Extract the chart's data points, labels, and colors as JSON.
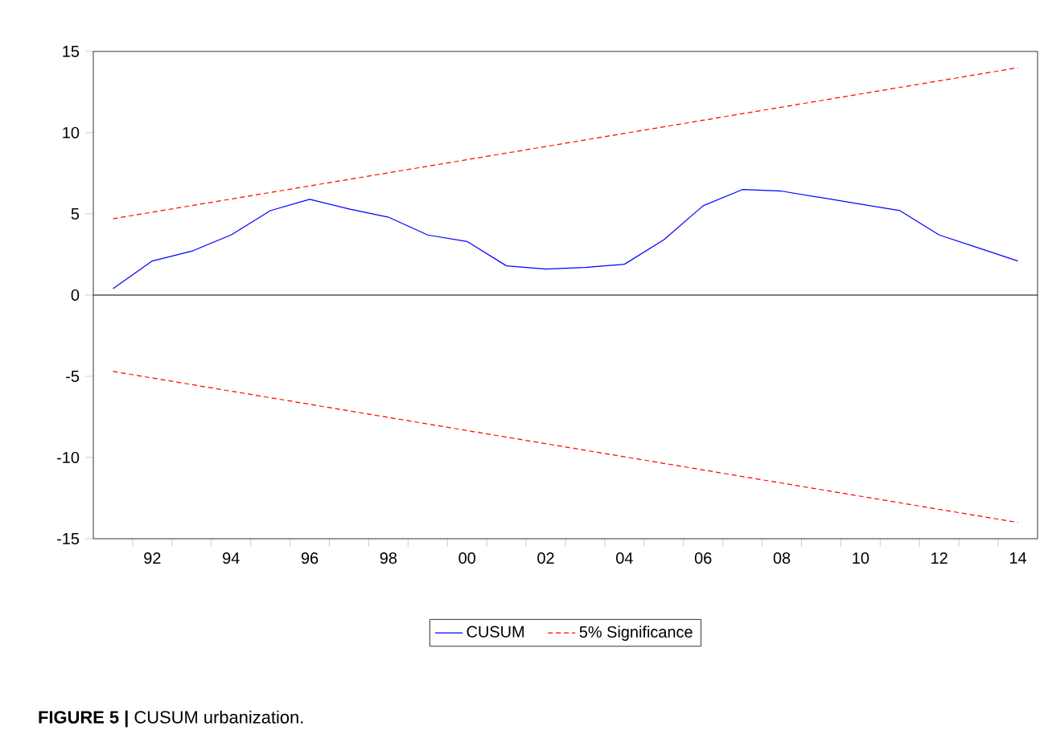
{
  "chart_data": {
    "type": "line",
    "xlim": [
      1990.5,
      2014.5
    ],
    "ylim": [
      -15,
      15
    ],
    "yticks": [
      -15,
      -10,
      -5,
      0,
      5,
      10,
      15
    ],
    "xticks": [
      {
        "value": 1991.5,
        "label": null
      },
      {
        "value": 1992,
        "label": "92"
      },
      {
        "value": 1992.5,
        "label": null
      },
      {
        "value": 1993.5,
        "label": null
      },
      {
        "value": 1994,
        "label": "94"
      },
      {
        "value": 1994.5,
        "label": null
      },
      {
        "value": 1995.5,
        "label": null
      },
      {
        "value": 1996,
        "label": "96"
      },
      {
        "value": 1996.5,
        "label": null
      },
      {
        "value": 1997.5,
        "label": null
      },
      {
        "value": 1998,
        "label": "98"
      },
      {
        "value": 1998.5,
        "label": null
      },
      {
        "value": 1999.5,
        "label": null
      },
      {
        "value": 2000,
        "label": "00"
      },
      {
        "value": 2000.5,
        "label": null
      },
      {
        "value": 2001.5,
        "label": null
      },
      {
        "value": 2002,
        "label": "02"
      },
      {
        "value": 2002.5,
        "label": null
      },
      {
        "value": 2003.5,
        "label": null
      },
      {
        "value": 2004,
        "label": "04"
      },
      {
        "value": 2004.5,
        "label": null
      },
      {
        "value": 2005.5,
        "label": null
      },
      {
        "value": 2006,
        "label": "06"
      },
      {
        "value": 2006.5,
        "label": null
      },
      {
        "value": 2007.5,
        "label": null
      },
      {
        "value": 2008,
        "label": "08"
      },
      {
        "value": 2008.5,
        "label": null
      },
      {
        "value": 2009.5,
        "label": null
      },
      {
        "value": 2010,
        "label": "10"
      },
      {
        "value": 2010.5,
        "label": null
      },
      {
        "value": 2011.5,
        "label": null
      },
      {
        "value": 2012,
        "label": "12"
      },
      {
        "value": 2012.5,
        "label": null
      },
      {
        "value": 2013.5,
        "label": null
      },
      {
        "value": 2014,
        "label": "14"
      }
    ],
    "grid": false,
    "legend": "bottom",
    "ref_lines": [
      {
        "axis": "y",
        "value": 0,
        "color": "#000000"
      }
    ],
    "series": [
      {
        "name": "CUSUM",
        "color": "#0000ff",
        "line_style": "solid",
        "x": [
          1991,
          1992,
          1993,
          1994,
          1995,
          1996,
          1997,
          1998,
          1999,
          2000,
          2001,
          2002,
          2003,
          2004,
          2005,
          2006,
          2007,
          2008,
          2009,
          2010,
          2011,
          2012,
          2013,
          2014
        ],
        "values": [
          0.4,
          2.1,
          2.7,
          3.7,
          5.2,
          5.9,
          5.3,
          4.8,
          3.7,
          3.3,
          1.8,
          1.6,
          1.7,
          1.9,
          3.4,
          5.5,
          6.5,
          6.4,
          6.0,
          5.6,
          5.2,
          3.7,
          2.9,
          2.1
        ]
      },
      {
        "name": "5% Significance",
        "color": "#ff0000",
        "line_style": "dashed",
        "x": [
          1991,
          2014
        ],
        "values": [
          4.7,
          14.0
        ]
      },
      {
        "color": "#ff0000",
        "line_style": "dashed",
        "x": [
          1991,
          2014
        ],
        "values": [
          -4.7,
          -14.0
        ]
      }
    ],
    "annotations": [
      "**FIGURE 5 |** CUSUM urbanization."
    ]
  }
}
